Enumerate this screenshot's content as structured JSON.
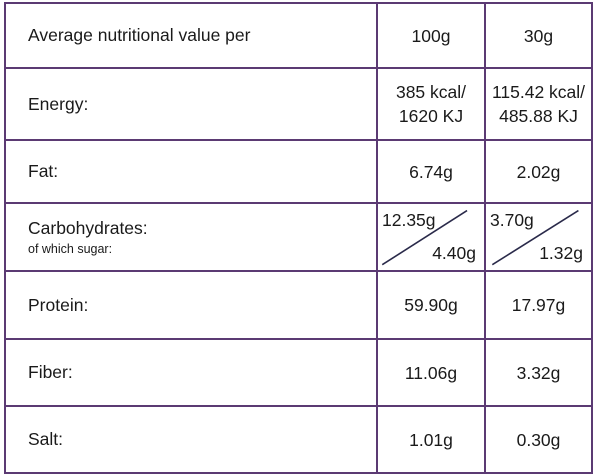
{
  "table": {
    "header": {
      "label": "Average nutritional value per",
      "col_100": "100g",
      "col_30": "30g"
    },
    "energy": {
      "label": "Energy:",
      "v100_line1": "385 kcal/",
      "v100_line2": "1620 KJ",
      "v30_line1": "115.42 kcal/",
      "v30_line2": "485.88 KJ"
    },
    "fat": {
      "label": "Fat:",
      "v100": "6.74g",
      "v30": "2.02g"
    },
    "carbohydrates": {
      "label": "Carbohydrates:",
      "sublabel": "of which sugar:",
      "v100_carb": "12.35g",
      "v100_sugar": "4.40g",
      "v30_carb": "3.70g",
      "v30_sugar": "1.32g"
    },
    "protein": {
      "label": "Protein:",
      "v100": "59.90g",
      "v30": "17.97g"
    },
    "fiber": {
      "label": "Fiber:",
      "v100": "11.06g",
      "v30": "3.32g"
    },
    "salt": {
      "label": "Salt:",
      "v100": "1.01g",
      "v30": "0.30g"
    }
  },
  "colors": {
    "border": "#5b3a73",
    "text": "#1a1a1a",
    "diagonal": "#2a2a4a"
  }
}
